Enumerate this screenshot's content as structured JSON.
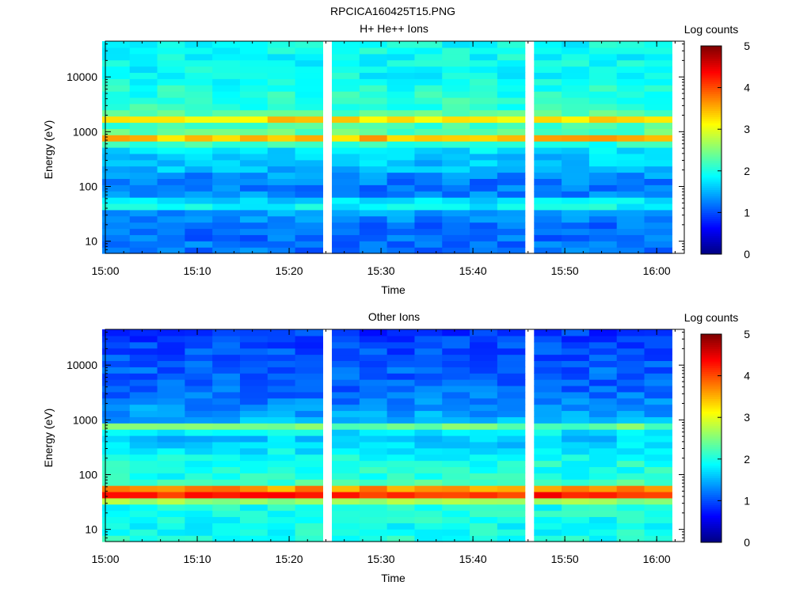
{
  "figure": {
    "title": "RPCICA160425T15.PNG"
  },
  "colorscale": {
    "stops": [
      "#00007f",
      "#0000ff",
      "#007fff",
      "#00ffff",
      "#7fff7f",
      "#ffff00",
      "#ff7f00",
      "#ff0000",
      "#7f0000"
    ]
  },
  "chart_data": [
    {
      "type": "heatmap",
      "title": "H+ He++ Ions",
      "xlabel": "Time",
      "ylabel": "Energy (eV)",
      "x_ticks": [
        "15:00",
        "15:10",
        "15:20",
        "15:30",
        "15:40",
        "15:50",
        "16:00"
      ],
      "y_ticks": [
        "10",
        "100",
        "1000",
        "10000"
      ],
      "y_scale": "log",
      "ylim": [
        6,
        45000
      ],
      "xlim": [
        "15:00",
        "16:03"
      ],
      "colorbar_label": "Log counts",
      "colorbar_ticks": [
        "0",
        "1",
        "2",
        "3",
        "4",
        "5"
      ],
      "clim": [
        0,
        5
      ],
      "time_bins": [
        "15:01",
        "15:04",
        "15:07",
        "15:10",
        "15:13",
        "15:16",
        "15:19",
        "15:22",
        "15:26",
        "15:29",
        "15:32",
        "15:35",
        "15:38",
        "15:41",
        "15:44",
        "15:48",
        "15:51",
        "15:54",
        "15:57",
        "16:00"
      ],
      "energy_profile": [
        {
          "e": 7,
          "v": 1.2
        },
        {
          "e": 10,
          "v": 1.2
        },
        {
          "e": 14,
          "v": 1.1
        },
        {
          "e": 20,
          "v": 1.2
        },
        {
          "e": 28,
          "v": 1.3
        },
        {
          "e": 38,
          "v": 1.5
        },
        {
          "e": 48,
          "v": 2.2
        },
        {
          "e": 60,
          "v": 1.5
        },
        {
          "e": 80,
          "v": 1.2
        },
        {
          "e": 110,
          "v": 1.2
        },
        {
          "e": 150,
          "v": 1.3
        },
        {
          "e": 220,
          "v": 1.6
        },
        {
          "e": 320,
          "v": 1.6
        },
        {
          "e": 450,
          "v": 1.7
        },
        {
          "e": 600,
          "v": 2.1
        },
        {
          "e": 780,
          "v": 3.5
        },
        {
          "e": 1000,
          "v": 2.3
        },
        {
          "e": 1300,
          "v": 2.2
        },
        {
          "e": 1700,
          "v": 3.3
        },
        {
          "e": 2300,
          "v": 2.1
        },
        {
          "e": 3500,
          "v": 2.1
        },
        {
          "e": 6000,
          "v": 2.0
        },
        {
          "e": 10000,
          "v": 1.9
        },
        {
          "e": 20000,
          "v": 1.9
        },
        {
          "e": 40000,
          "v": 1.9
        }
      ]
    },
    {
      "type": "heatmap",
      "title": "Other Ions",
      "xlabel": "Time",
      "ylabel": "Energy (eV)",
      "x_ticks": [
        "15:00",
        "15:10",
        "15:20",
        "15:30",
        "15:40",
        "15:50",
        "16:00"
      ],
      "y_ticks": [
        "10",
        "100",
        "1000",
        "10000"
      ],
      "y_scale": "log",
      "ylim": [
        6,
        45000
      ],
      "xlim": [
        "15:00",
        "16:03"
      ],
      "colorbar_label": "Log counts",
      "colorbar_ticks": [
        "0",
        "1",
        "2",
        "3",
        "4",
        "5"
      ],
      "clim": [
        0,
        5
      ],
      "time_bins": [
        "15:01",
        "15:04",
        "15:07",
        "15:10",
        "15:13",
        "15:16",
        "15:19",
        "15:22",
        "15:26",
        "15:29",
        "15:32",
        "15:35",
        "15:38",
        "15:41",
        "15:44",
        "15:48",
        "15:51",
        "15:54",
        "15:57",
        "16:00"
      ],
      "energy_profile": [
        {
          "e": 7,
          "v": 2.0
        },
        {
          "e": 10,
          "v": 1.95
        },
        {
          "e": 14,
          "v": 1.95
        },
        {
          "e": 20,
          "v": 2.0
        },
        {
          "e": 28,
          "v": 2.0
        },
        {
          "e": 35,
          "v": 2.8
        },
        {
          "e": 40,
          "v": 4.0
        },
        {
          "e": 47,
          "v": 4.5
        },
        {
          "e": 55,
          "v": 3.8
        },
        {
          "e": 62,
          "v": 2.6
        },
        {
          "e": 80,
          "v": 2.0
        },
        {
          "e": 110,
          "v": 2.0
        },
        {
          "e": 160,
          "v": 2.0
        },
        {
          "e": 230,
          "v": 1.9
        },
        {
          "e": 320,
          "v": 1.7
        },
        {
          "e": 450,
          "v": 1.6
        },
        {
          "e": 600,
          "v": 1.8
        },
        {
          "e": 780,
          "v": 2.4
        },
        {
          "e": 1000,
          "v": 1.5
        },
        {
          "e": 1500,
          "v": 1.4
        },
        {
          "e": 2500,
          "v": 1.2
        },
        {
          "e": 5000,
          "v": 1.1
        },
        {
          "e": 10000,
          "v": 1.1
        },
        {
          "e": 20000,
          "v": 1.0
        },
        {
          "e": 40000,
          "v": 0.9
        }
      ]
    }
  ]
}
